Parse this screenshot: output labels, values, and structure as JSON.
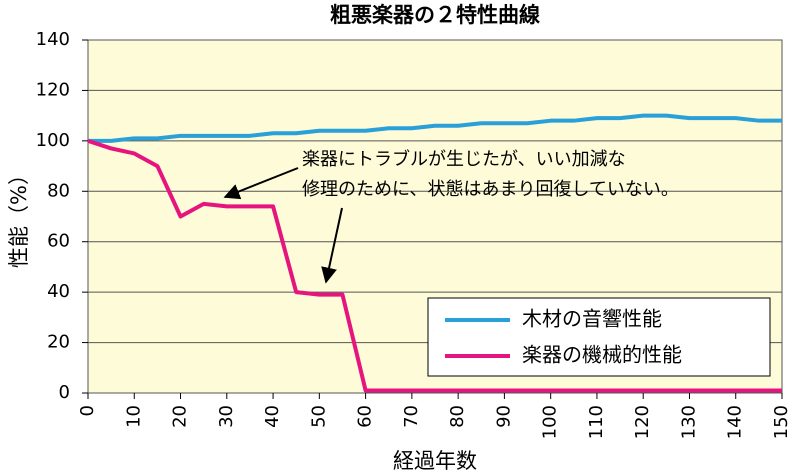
{
  "chart_data": {
    "type": "line",
    "title": "粗悪楽器の２特性曲線",
    "x_label": "経過年数",
    "y_label": "性能（%）",
    "x": [
      0,
      5,
      10,
      15,
      20,
      25,
      30,
      35,
      40,
      45,
      50,
      55,
      60,
      65,
      70,
      75,
      80,
      85,
      90,
      95,
      100,
      105,
      110,
      115,
      120,
      125,
      130,
      135,
      140,
      145,
      150
    ],
    "series": [
      {
        "name": "木材の音響性能",
        "color": "#2aa0d8",
        "values": [
          100,
          100,
          101,
          101,
          102,
          102,
          102,
          102,
          103,
          103,
          104,
          104,
          104,
          105,
          105,
          106,
          106,
          107,
          107,
          107,
          108,
          108,
          109,
          109,
          110,
          110,
          109,
          109,
          109,
          108,
          108
        ]
      },
      {
        "name": "楽器の機械的性能",
        "color": "#e6147f",
        "values": [
          100,
          97,
          95,
          90,
          70,
          75,
          74,
          74,
          74,
          40,
          39,
          39,
          1,
          1,
          1,
          1,
          1,
          1,
          1,
          1,
          1,
          1,
          1,
          1,
          1,
          1,
          1,
          1,
          1,
          1,
          1
        ]
      }
    ],
    "xlim": [
      0,
      150
    ],
    "xticks": [
      0,
      10,
      20,
      30,
      40,
      50,
      60,
      70,
      80,
      90,
      100,
      110,
      120,
      130,
      140,
      150
    ],
    "ylim": [
      0,
      140
    ],
    "yticks": [
      0,
      20,
      40,
      60,
      80,
      100,
      120,
      140
    ],
    "grid": true,
    "legend": "lower right",
    "annotations": [
      "楽器にトラブルが生じたが、いい加減な",
      "修理のために、状態はあまり回復していない。"
    ]
  }
}
